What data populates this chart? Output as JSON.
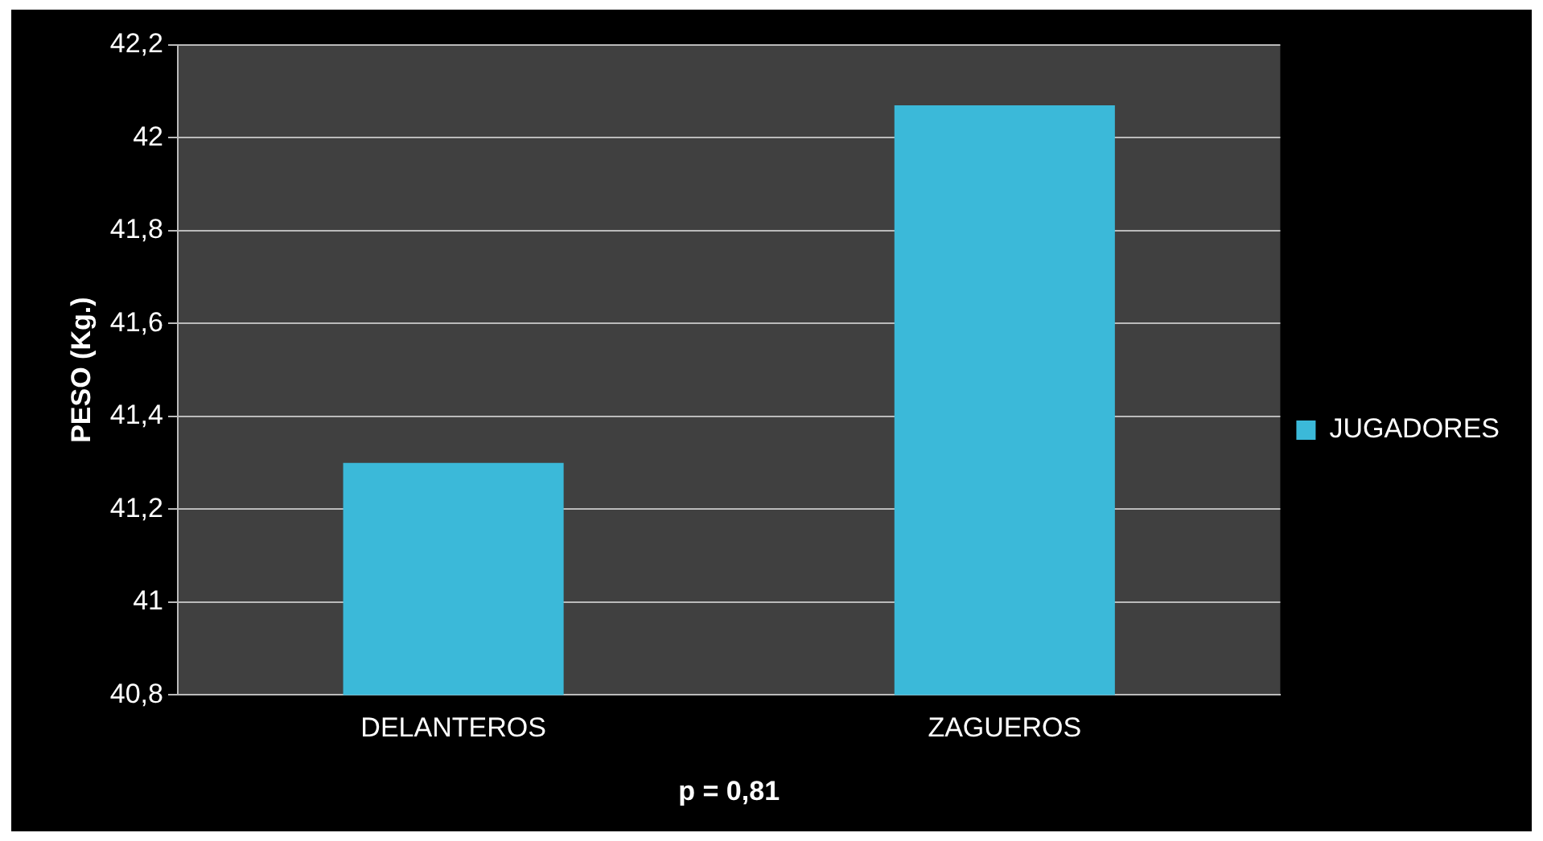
{
  "chart_data": {
    "type": "bar",
    "xlabel": "p = 0,81",
    "ylabel": "PESO (Kg.)",
    "categories": [
      "DELANTEROS",
      "ZAGUEROS"
    ],
    "series": [
      {
        "name": "JUGADORES",
        "color": "#3bb9d9",
        "values": [
          41.3,
          42.07
        ]
      }
    ],
    "ylim": [
      40.8,
      42.2
    ],
    "yticks": [
      {
        "value": 40.8,
        "label": "40,8"
      },
      {
        "value": 41,
        "label": "41"
      },
      {
        "value": 41.2,
        "label": "41,2"
      },
      {
        "value": 41.4,
        "label": "41,4"
      },
      {
        "value": 41.6,
        "label": "41,6"
      },
      {
        "value": 41.8,
        "label": "41,8"
      },
      {
        "value": 42,
        "label": "42"
      },
      {
        "value": 42.2,
        "label": "42,2"
      }
    ],
    "grid": "y",
    "legend": "right"
  }
}
